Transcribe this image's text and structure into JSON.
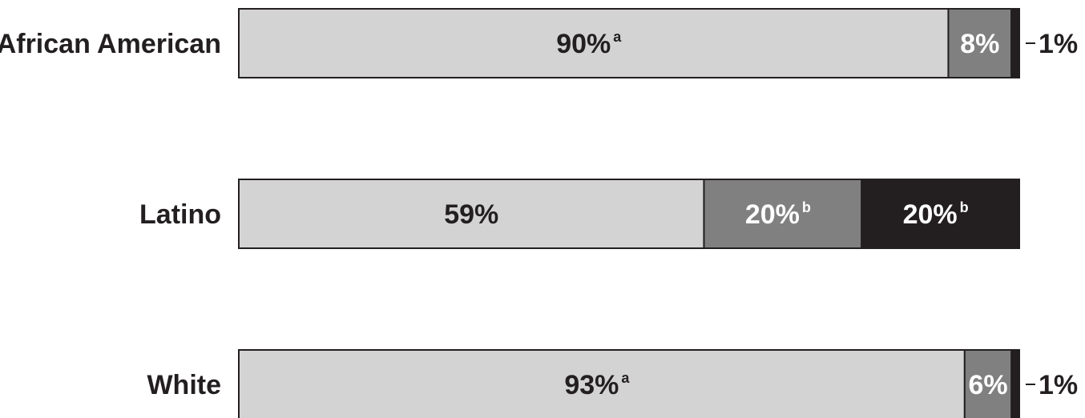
{
  "chart_data": {
    "type": "bar",
    "orientation": "horizontal",
    "stacked": true,
    "title": "",
    "xlabel": "",
    "ylabel": "",
    "categories": [
      "African American",
      "Latino",
      "White"
    ],
    "series": [
      {
        "color": "#d3d3d4",
        "text_color": "#231f20",
        "values": [
          90,
          59,
          93
        ],
        "labels": [
          "90%",
          "59%",
          "93%"
        ],
        "superscripts": [
          "a",
          "",
          "a"
        ]
      },
      {
        "color": "#808080",
        "text_color": "#ffffff",
        "values": [
          8,
          20,
          6
        ],
        "labels": [
          "8%",
          "20%",
          "6%"
        ],
        "superscripts": [
          "",
          "b",
          ""
        ]
      },
      {
        "color": "#231f20",
        "text_color": "#ffffff",
        "values": [
          1,
          20,
          1
        ],
        "labels": [
          "1%",
          "20%",
          "1%"
        ],
        "superscripts": [
          "",
          "b",
          ""
        ],
        "label_outside": [
          true,
          false,
          true
        ]
      }
    ],
    "grid": false,
    "legend": "none"
  }
}
